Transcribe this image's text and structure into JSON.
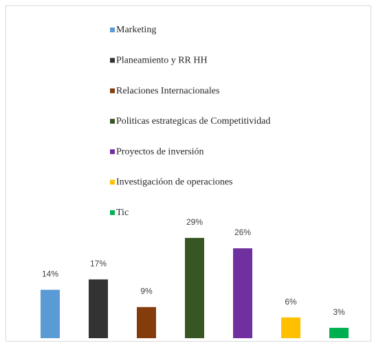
{
  "chart_data": {
    "type": "bar",
    "categories": [
      "Marketing",
      "Planeamiento y RR HH",
      "Relaciones Internacionales",
      "Politicas estrategicas de Competitividad",
      "Proyectos de inversión",
      "Investigacióon de operaciones",
      "Tic"
    ],
    "values": [
      14,
      17,
      9,
      29,
      26,
      6,
      3
    ],
    "value_labels": [
      "14%",
      "17%",
      "9%",
      "29%",
      "26%",
      "6%",
      "3%"
    ],
    "colors": [
      "#5b9bd5",
      "#333333",
      "#843c0c",
      "#375623",
      "#7030a0",
      "#ffc000",
      "#00b050"
    ],
    "legend": "top"
  }
}
